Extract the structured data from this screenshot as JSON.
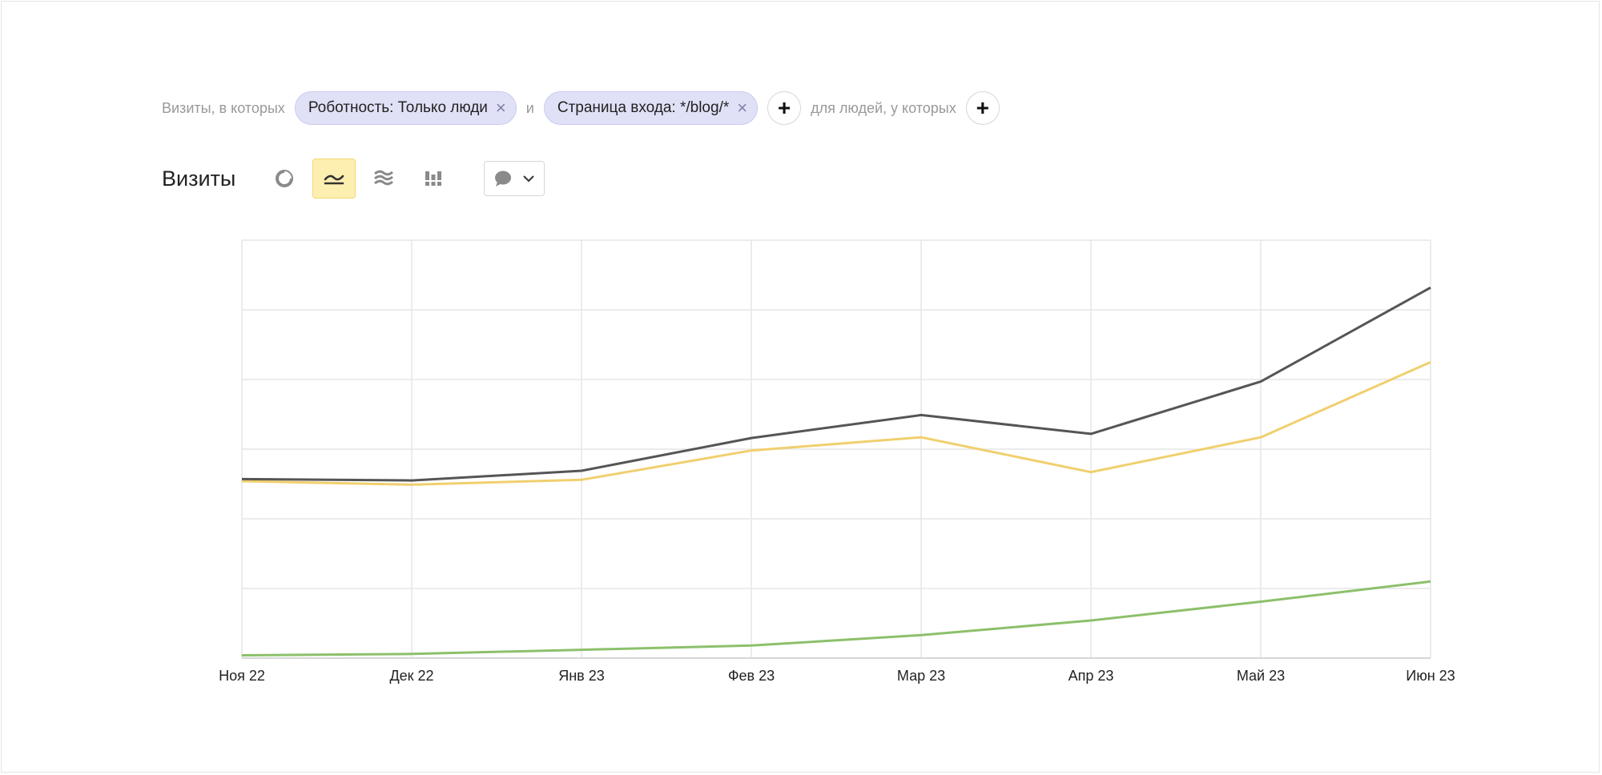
{
  "filters": {
    "prefix": "Визиты, в которых",
    "chips": [
      {
        "label": "Роботность: Только люди"
      },
      {
        "label": "Страница входа: */blog/*"
      }
    ],
    "conjunction": "и",
    "people_text": "для людей, у которых"
  },
  "chart_header": {
    "title": "Визиты",
    "view_icons": [
      "pie-chart-icon",
      "line-chart-icon",
      "area-chart-icon",
      "bar-chart-icon"
    ],
    "active_view": "line-chart-icon",
    "comment_icon": "speech-bubble-icon"
  },
  "colors": {
    "grid": "#e6e6e6",
    "series_total": "#555555",
    "series_yellow": "#f0cf6e",
    "series_green": "#8cc06a",
    "active_view_bg": "#fdefb0"
  },
  "chart_data": {
    "type": "line",
    "categories": [
      "Ноя 22",
      "Дек 22",
      "Янв 23",
      "Фев 23",
      "Мар 23",
      "Апр 23",
      "Май 23",
      "Июн 23"
    ],
    "ylim": [
      0,
      6
    ],
    "y_tick_labels": [
      "",
      "",
      "",
      "",
      "",
      ""
    ],
    "grid": true,
    "series": [
      {
        "color": "#555555",
        "values": [
          2.57,
          2.55,
          2.69,
          3.16,
          3.49,
          3.22,
          3.97,
          5.32
        ]
      },
      {
        "color": "#f0cf6e",
        "values": [
          2.54,
          2.49,
          2.56,
          2.98,
          3.17,
          2.67,
          3.17,
          4.25
        ]
      },
      {
        "color": "#8cc06a",
        "values": [
          0.04,
          0.06,
          0.12,
          0.18,
          0.33,
          0.54,
          0.81,
          1.1
        ]
      }
    ]
  }
}
